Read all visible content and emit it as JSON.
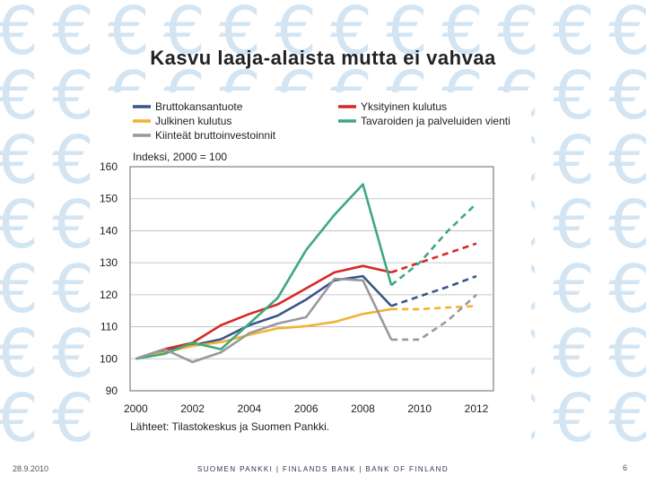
{
  "slide": {
    "title": "Kasvu laaja-alaista mutta ei vahvaa",
    "footer_date": "28.9.2010",
    "footer_bank": "SUOMEN PANKKI | FINLANDS BANK | BANK OF FINLAND",
    "page_number": "6",
    "background_icon": "euro-icon"
  },
  "chart_data": {
    "type": "line",
    "title": "Kasvu laaja-alaista mutta ei vahvaa",
    "ylabel": "Indeksi, 2000 = 100",
    "xlabel": "",
    "source": "Lähteet: Tilastokeskus ja Suomen Pankki.",
    "xlim": [
      1999.8,
      2012.6
    ],
    "ylim": [
      90,
      160
    ],
    "yticks": [
      90,
      100,
      110,
      120,
      130,
      140,
      150,
      160
    ],
    "xticks": [
      2000,
      2002,
      2004,
      2006,
      2008,
      2010,
      2012
    ],
    "grid": true,
    "legend_position": "top",
    "forecast_start": 2009,
    "series": [
      {
        "name": "Bruttokansantuote",
        "color": "#3a5588",
        "actual": {
          "x": [
            2000,
            2001,
            2002,
            2003,
            2004,
            2005,
            2006,
            2007,
            2008,
            2009
          ],
          "y": [
            100,
            102.5,
            104.2,
            106.1,
            110.5,
            113.5,
            118.5,
            124.5,
            125.8,
            116.5
          ]
        },
        "forecast": {
          "x": [
            2009,
            2010,
            2011,
            2012
          ],
          "y": [
            116.5,
            119.5,
            122.5,
            125.8
          ]
        }
      },
      {
        "name": "Yksityinen kulutus",
        "color": "#d42a27",
        "actual": {
          "x": [
            2000,
            2001,
            2002,
            2003,
            2004,
            2005,
            2006,
            2007,
            2008,
            2009
          ],
          "y": [
            100,
            103,
            105,
            110.5,
            114,
            117,
            122,
            127,
            129,
            127
          ]
        },
        "forecast": {
          "x": [
            2009,
            2010,
            2011,
            2012
          ],
          "y": [
            127,
            130,
            133,
            136
          ]
        }
      },
      {
        "name": "Julkinen kulutus",
        "color": "#f2b233",
        "actual": {
          "x": [
            2000,
            2001,
            2002,
            2003,
            2004,
            2005,
            2006,
            2007,
            2008,
            2009
          ],
          "y": [
            100,
            102,
            104,
            105.2,
            107.5,
            109.5,
            110.2,
            111.5,
            114,
            115.5
          ]
        },
        "forecast": {
          "x": [
            2009,
            2010,
            2011,
            2012
          ],
          "y": [
            115.5,
            115.5,
            116,
            116.5
          ]
        }
      },
      {
        "name": "Tavaroiden ja palveluiden vienti",
        "color": "#3fa883",
        "actual": {
          "x": [
            2000,
            2001,
            2002,
            2003,
            2004,
            2005,
            2006,
            2007,
            2008,
            2009
          ],
          "y": [
            100,
            101.5,
            105,
            103,
            111,
            119,
            134,
            145,
            154.5,
            123
          ]
        },
        "forecast": {
          "x": [
            2009,
            2010,
            2011,
            2012
          ],
          "y": [
            123,
            130,
            140,
            148.5
          ]
        }
      },
      {
        "name": "Kiinteät bruttoinvestoinnit",
        "color": "#999999",
        "actual": {
          "x": [
            2000,
            2001,
            2002,
            2003,
            2004,
            2005,
            2006,
            2007,
            2008,
            2009
          ],
          "y": [
            100,
            103,
            99,
            102,
            108,
            111,
            113,
            125,
            124.5,
            106
          ]
        },
        "forecast": {
          "x": [
            2009,
            2010,
            2011,
            2012
          ],
          "y": [
            106,
            106,
            112,
            120
          ]
        }
      }
    ]
  }
}
